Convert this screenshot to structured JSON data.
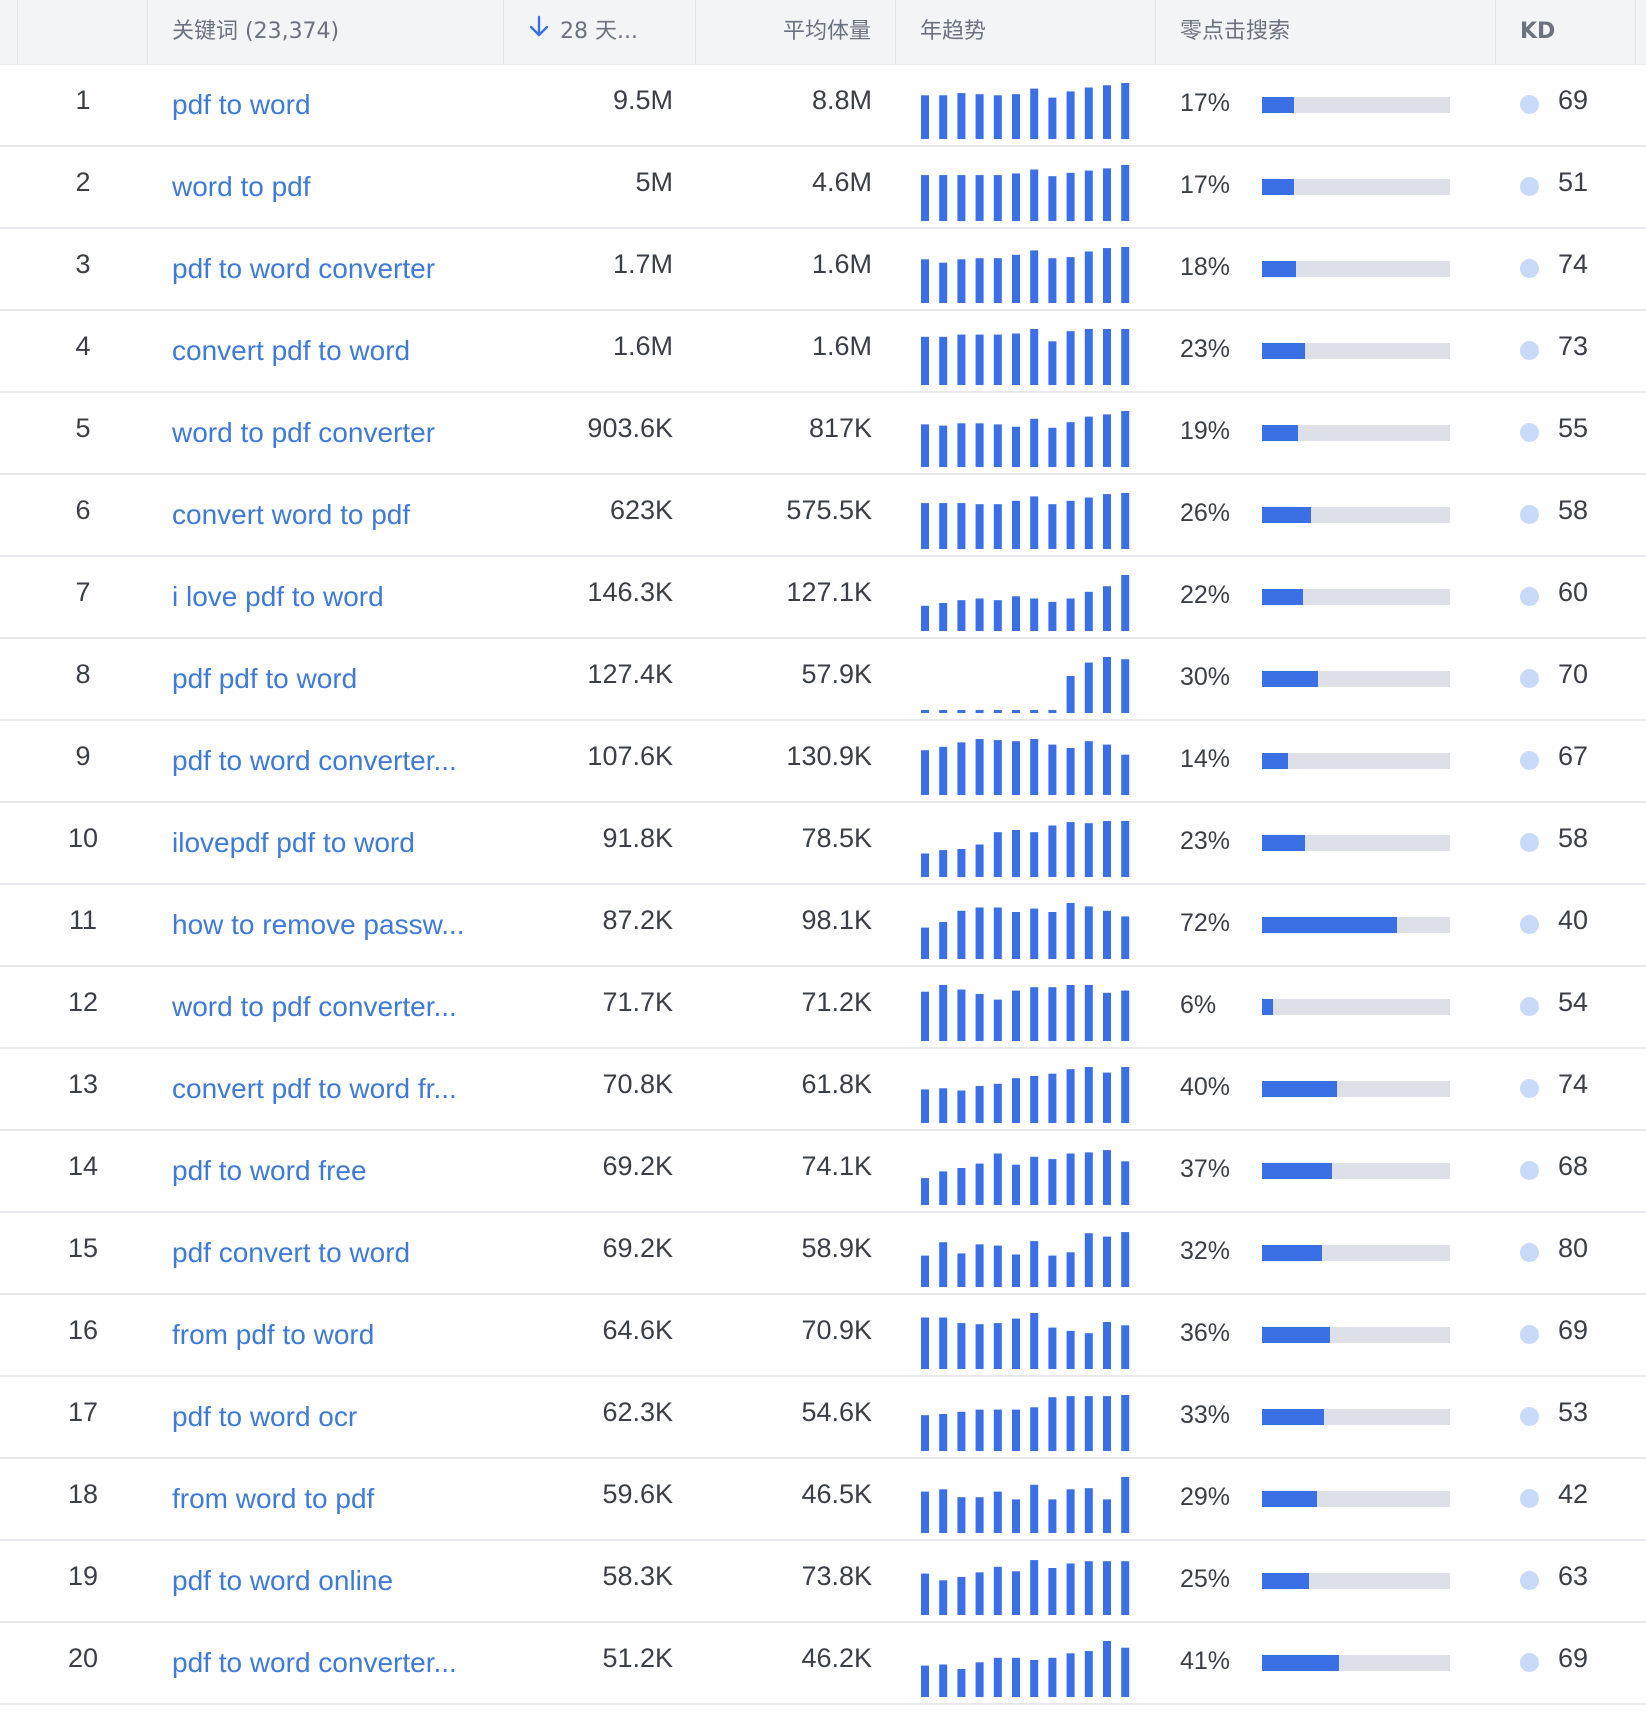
{
  "header": {
    "keyword_label": "关键词 (23,374)",
    "days_label": "28 天...",
    "avg_label": "平均体量",
    "trend_label": "年趋势",
    "zero_label": "零点击搜索",
    "kd_label": "KD"
  },
  "colors": {
    "accent": "#3b6fe6",
    "link": "#3f7ad8",
    "bar_track": "#dde0e7",
    "kd_dot": "#c8daf7"
  },
  "rows": [
    {
      "index": "1",
      "keyword": "pdf to word",
      "volume_28d": "9.5M",
      "avg_volume": "8.8M",
      "zero_click": "17%",
      "zero_click_value": 0.17,
      "kd": "69",
      "trend": [
        0.78,
        0.78,
        0.82,
        0.8,
        0.78,
        0.8,
        0.9,
        0.74,
        0.85,
        0.92,
        0.96,
        1.0
      ]
    },
    {
      "index": "2",
      "keyword": "word to pdf",
      "volume_28d": "5M",
      "avg_volume": "4.6M",
      "zero_click": "17%",
      "zero_click_value": 0.17,
      "kd": "51",
      "trend": [
        0.82,
        0.82,
        0.82,
        0.82,
        0.82,
        0.85,
        0.92,
        0.8,
        0.86,
        0.9,
        0.94,
        1.0
      ]
    },
    {
      "index": "3",
      "keyword": "pdf to word converter",
      "volume_28d": "1.7M",
      "avg_volume": "1.6M",
      "zero_click": "18%",
      "zero_click_value": 0.18,
      "kd": "74",
      "trend": [
        0.78,
        0.72,
        0.78,
        0.8,
        0.8,
        0.86,
        0.94,
        0.8,
        0.82,
        0.92,
        0.98,
        1.0
      ]
    },
    {
      "index": "4",
      "keyword": "convert pdf to word",
      "volume_28d": "1.6M",
      "avg_volume": "1.6M",
      "zero_click": "23%",
      "zero_click_value": 0.23,
      "kd": "73",
      "trend": [
        0.86,
        0.86,
        0.9,
        0.9,
        0.9,
        0.92,
        1.0,
        0.78,
        0.96,
        1.0,
        1.0,
        1.0
      ]
    },
    {
      "index": "5",
      "keyword": "word to pdf converter",
      "volume_28d": "903.6K",
      "avg_volume": "817K",
      "zero_click": "19%",
      "zero_click_value": 0.19,
      "kd": "55",
      "trend": [
        0.76,
        0.74,
        0.78,
        0.78,
        0.76,
        0.72,
        0.86,
        0.7,
        0.8,
        0.9,
        0.94,
        1.0
      ]
    },
    {
      "index": "6",
      "keyword": "convert word to pdf",
      "volume_28d": "623K",
      "avg_volume": "575.5K",
      "zero_click": "26%",
      "zero_click_value": 0.26,
      "kd": "58",
      "trend": [
        0.82,
        0.82,
        0.82,
        0.8,
        0.8,
        0.86,
        0.94,
        0.8,
        0.86,
        0.92,
        0.98,
        1.0
      ]
    },
    {
      "index": "7",
      "keyword": "i love pdf to word",
      "volume_28d": "146.3K",
      "avg_volume": "127.1K",
      "zero_click": "22%",
      "zero_click_value": 0.22,
      "kd": "60",
      "trend": [
        0.45,
        0.5,
        0.55,
        0.58,
        0.55,
        0.62,
        0.58,
        0.52,
        0.58,
        0.7,
        0.8,
        1.0
      ]
    },
    {
      "index": "8",
      "keyword": "pdf pdf to word",
      "volume_28d": "127.4K",
      "avg_volume": "57.9K",
      "zero_click": "30%",
      "zero_click_value": 0.3,
      "kd": "70",
      "trend": [
        0.03,
        0.03,
        0.03,
        0.03,
        0.03,
        0.03,
        0.03,
        0.03,
        0.66,
        0.9,
        1.0,
        0.96
      ]
    },
    {
      "index": "9",
      "keyword": "pdf to word converter...",
      "volume_28d": "107.6K",
      "avg_volume": "130.9K",
      "zero_click": "14%",
      "zero_click_value": 0.14,
      "kd": "67",
      "trend": [
        0.8,
        0.86,
        0.94,
        1.0,
        0.98,
        0.96,
        1.0,
        0.9,
        0.84,
        0.96,
        0.9,
        0.72
      ]
    },
    {
      "index": "10",
      "keyword": "ilovepdf pdf to word",
      "volume_28d": "91.8K",
      "avg_volume": "78.5K",
      "zero_click": "23%",
      "zero_click_value": 0.23,
      "kd": "58",
      "trend": [
        0.42,
        0.48,
        0.5,
        0.58,
        0.8,
        0.84,
        0.8,
        0.92,
        0.98,
        0.96,
        1.0,
        1.0
      ]
    },
    {
      "index": "11",
      "keyword": "how to remove passw...",
      "volume_28d": "87.2K",
      "avg_volume": "98.1K",
      "zero_click": "72%",
      "zero_click_value": 0.72,
      "kd": "40",
      "trend": [
        0.56,
        0.66,
        0.86,
        0.92,
        0.92,
        0.84,
        0.9,
        0.84,
        1.0,
        0.94,
        0.86,
        0.76
      ]
    },
    {
      "index": "12",
      "keyword": "word to pdf converter...",
      "volume_28d": "71.7K",
      "avg_volume": "71.2K",
      "zero_click": "6%",
      "zero_click_value": 0.06,
      "kd": "54",
      "trend": [
        0.88,
        1.0,
        0.92,
        0.84,
        0.74,
        0.9,
        0.96,
        0.96,
        1.0,
        1.0,
        0.86,
        0.9
      ]
    },
    {
      "index": "13",
      "keyword": "convert pdf to word fr...",
      "volume_28d": "70.8K",
      "avg_volume": "61.8K",
      "zero_click": "40%",
      "zero_click_value": 0.4,
      "kd": "74",
      "trend": [
        0.6,
        0.62,
        0.58,
        0.66,
        0.7,
        0.8,
        0.84,
        0.88,
        0.96,
        1.0,
        0.9,
        1.0
      ]
    },
    {
      "index": "14",
      "keyword": "pdf to word free",
      "volume_28d": "69.2K",
      "avg_volume": "74.1K",
      "zero_click": "37%",
      "zero_click_value": 0.37,
      "kd": "68",
      "trend": [
        0.48,
        0.6,
        0.66,
        0.74,
        0.92,
        0.72,
        0.86,
        0.82,
        0.92,
        0.94,
        0.98,
        0.78
      ]
    },
    {
      "index": "15",
      "keyword": "pdf convert to word",
      "volume_28d": "69.2K",
      "avg_volume": "58.9K",
      "zero_click": "32%",
      "zero_click_value": 0.32,
      "kd": "80",
      "trend": [
        0.56,
        0.8,
        0.6,
        0.76,
        0.74,
        0.58,
        0.82,
        0.56,
        0.62,
        0.96,
        0.9,
        0.98
      ]
    },
    {
      "index": "16",
      "keyword": "from pdf to word",
      "volume_28d": "64.6K",
      "avg_volume": "70.9K",
      "zero_click": "36%",
      "zero_click_value": 0.36,
      "kd": "69",
      "trend": [
        0.92,
        0.92,
        0.82,
        0.8,
        0.82,
        0.9,
        1.0,
        0.74,
        0.68,
        0.64,
        0.84,
        0.78
      ]
    },
    {
      "index": "17",
      "keyword": "pdf to word ocr",
      "volume_28d": "62.3K",
      "avg_volume": "54.6K",
      "zero_click": "33%",
      "zero_click_value": 0.33,
      "kd": "53",
      "trend": [
        0.64,
        0.66,
        0.7,
        0.74,
        0.74,
        0.74,
        0.78,
        0.96,
        0.98,
        0.98,
        0.98,
        1.0
      ]
    },
    {
      "index": "18",
      "keyword": "from word to pdf",
      "volume_28d": "59.6K",
      "avg_volume": "46.5K",
      "zero_click": "29%",
      "zero_click_value": 0.29,
      "kd": "42",
      "trend": [
        0.74,
        0.78,
        0.64,
        0.64,
        0.74,
        0.6,
        0.86,
        0.6,
        0.78,
        0.8,
        0.6,
        1.0
      ]
    },
    {
      "index": "19",
      "keyword": "pdf to word online",
      "volume_28d": "58.3K",
      "avg_volume": "73.8K",
      "zero_click": "25%",
      "zero_click_value": 0.25,
      "kd": "63",
      "trend": [
        0.74,
        0.62,
        0.68,
        0.76,
        0.86,
        0.78,
        0.98,
        0.84,
        0.92,
        0.96,
        0.96,
        0.96
      ]
    },
    {
      "index": "20",
      "keyword": "pdf to word converter...",
      "volume_28d": "51.2K",
      "avg_volume": "46.2K",
      "zero_click": "41%",
      "zero_click_value": 0.41,
      "kd": "69",
      "trend": [
        0.56,
        0.58,
        0.5,
        0.62,
        0.7,
        0.7,
        0.66,
        0.7,
        0.78,
        0.82,
        1.0,
        0.88
      ]
    }
  ]
}
